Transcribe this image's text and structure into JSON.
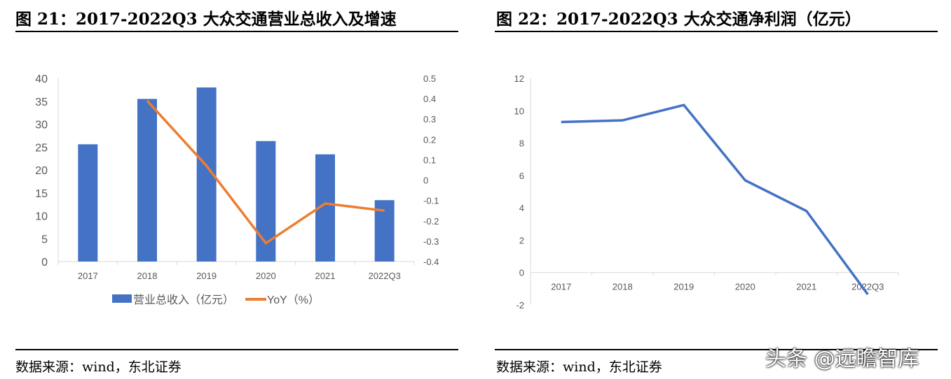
{
  "left": {
    "title": "图 21：2017-2022Q3 大众交通营业总收入及增速",
    "source": "数据来源：wind，东北证券"
  },
  "right": {
    "title": "图 22：2017-2022Q3 大众交通净利润（亿元）",
    "source": "数据来源：wind，东北证券"
  },
  "watermark": "头条 @远瞻智库",
  "colors": {
    "bar": "#4472C4",
    "yoy": "#ED7D31",
    "line": "#4472C4"
  },
  "chart_data": [
    {
      "type": "bar",
      "title": "2017-2022Q3 大众交通营业总收入及增速",
      "categories": [
        "2017",
        "2018",
        "2019",
        "2020",
        "2021",
        "2022Q3"
      ],
      "series": [
        {
          "name": "营业总收入（亿元）",
          "type": "bar",
          "axis": "left",
          "values": [
            25.6,
            35.5,
            38.0,
            26.3,
            23.4,
            13.4
          ]
        },
        {
          "name": "YoY（%）",
          "type": "line",
          "axis": "right",
          "values": [
            null,
            0.39,
            0.07,
            -0.31,
            -0.115,
            -0.15
          ]
        }
      ],
      "ylim": [
        0,
        40
      ],
      "yticks": [
        "0",
        "5",
        "10",
        "15",
        "20",
        "25",
        "30",
        "35",
        "40"
      ],
      "y2lim": [
        -0.4,
        0.5
      ],
      "y2ticks": [
        "-0.4",
        "-0.3",
        "-0.2",
        "-0.1",
        "0",
        "0.1",
        "0.2",
        "0.3",
        "0.4",
        "0.5"
      ],
      "legend": "bottom",
      "grid": false
    },
    {
      "type": "line",
      "title": "2017-2022Q3 大众交通净利润（亿元）",
      "categories": [
        "2017",
        "2018",
        "2019",
        "2020",
        "2021",
        "2022Q3"
      ],
      "series": [
        {
          "name": "净利润（亿元）",
          "values": [
            9.3,
            9.4,
            10.35,
            5.7,
            3.8,
            -1.35
          ]
        }
      ],
      "ylim": [
        -2,
        12
      ],
      "yticks": [
        "-2",
        "0",
        "2",
        "4",
        "6",
        "8",
        "10",
        "12"
      ],
      "grid": false
    }
  ]
}
